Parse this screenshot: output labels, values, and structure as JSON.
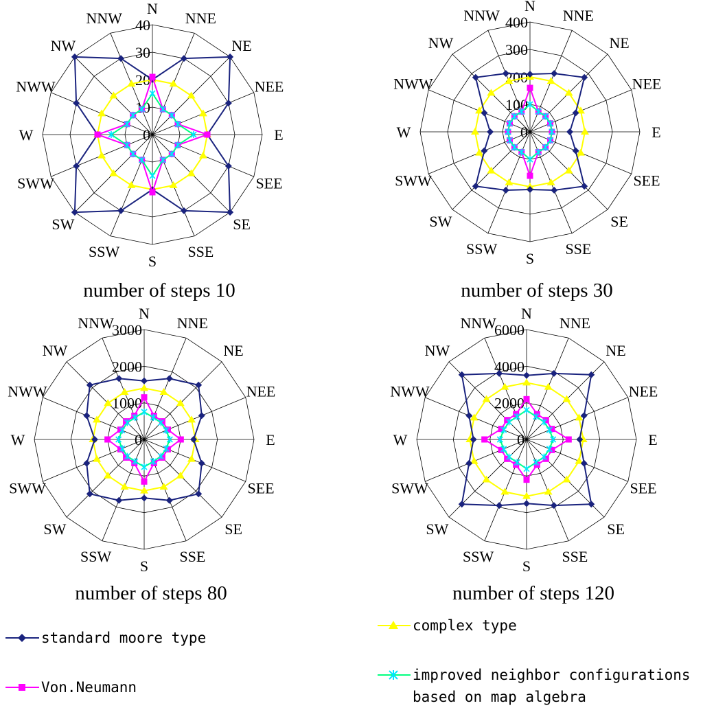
{
  "colors": {
    "standard_moore": "#1a237e",
    "complex": "#ffff00",
    "von_neumann": "#ff00ff",
    "improved": "#00ff7f",
    "improved_marker": "#00e5ff",
    "grid": "#000000"
  },
  "legend": {
    "standard_moore": "standard moore type",
    "complex": "complex type",
    "von_neumann": "Von.Neumann",
    "improved_line1": "improved neighbor configurations",
    "improved_line2": "based on map algebra"
  },
  "chart_data": [
    {
      "type": "radar",
      "title": "number of steps 10",
      "categories": [
        "N",
        "NNE",
        "NE",
        "NEE",
        "E",
        "SEE",
        "SE",
        "SSE",
        "S",
        "SSW",
        "SW",
        "SWW",
        "W",
        "NWW",
        "NW",
        "NNW"
      ],
      "rings": [
        0,
        10,
        20,
        30,
        40
      ],
      "ring_labels": [
        "0",
        "10",
        "20",
        "30",
        "40"
      ],
      "rmax": 40,
      "series": [
        {
          "name": "standard moore type",
          "key": "standard_moore",
          "values": [
            20,
            30,
            40,
            30,
            20,
            30,
            40,
            30,
            20,
            30,
            40,
            30,
            20,
            30,
            40,
            30
          ]
        },
        {
          "name": "complex type",
          "key": "complex",
          "values": [
            20,
            20,
            20,
            20,
            20,
            20,
            20,
            20,
            20,
            20,
            20,
            20,
            20,
            20,
            20,
            20
          ]
        },
        {
          "name": "Von.Neumann",
          "key": "von_neumann",
          "values": [
            21,
            10,
            10,
            10,
            20,
            10,
            10,
            10,
            21,
            10,
            10,
            10,
            20,
            10,
            10,
            10
          ]
        },
        {
          "name": "improved neighbor configurations based on map algebra",
          "key": "improved",
          "values": [
            15,
            10,
            10,
            10,
            15,
            10,
            10,
            10,
            15,
            10,
            10,
            10,
            15,
            10,
            10,
            10
          ]
        }
      ]
    },
    {
      "type": "radar",
      "title": "number of steps 30",
      "categories": [
        "N",
        "NNE",
        "NE",
        "NEE",
        "E",
        "SEE",
        "SE",
        "SSE",
        "S",
        "SSW",
        "SW",
        "SWW",
        "W",
        "NWW",
        "NW",
        "NNW"
      ],
      "rings": [
        0,
        100,
        200,
        300,
        400
      ],
      "ring_labels": [
        "0",
        "100",
        "200",
        "300",
        "400"
      ],
      "rmax": 400,
      "series": [
        {
          "name": "standard moore type",
          "key": "standard_moore",
          "values": [
            210,
            230,
            280,
            180,
            145,
            180,
            280,
            230,
            210,
            230,
            280,
            180,
            145,
            180,
            280,
            230
          ]
        },
        {
          "name": "complex type",
          "key": "complex",
          "values": [
            200,
            200,
            200,
            200,
            200,
            200,
            200,
            200,
            200,
            200,
            200,
            200,
            200,
            200,
            200,
            200
          ]
        },
        {
          "name": "Von.Neumann",
          "key": "von_neumann",
          "values": [
            160,
            80,
            80,
            80,
            80,
            80,
            80,
            80,
            160,
            80,
            80,
            80,
            80,
            80,
            80,
            80
          ]
        },
        {
          "name": "improved neighbor configurations based on map algebra",
          "key": "improved",
          "values": [
            100,
            80,
            80,
            80,
            80,
            80,
            80,
            80,
            100,
            80,
            80,
            80,
            80,
            80,
            80,
            80
          ]
        }
      ]
    },
    {
      "type": "radar",
      "title": "number of steps 80",
      "categories": [
        "N",
        "NNE",
        "NE",
        "NEE",
        "E",
        "SEE",
        "SE",
        "SSE",
        "S",
        "SSW",
        "SW",
        "SWW",
        "W",
        "NWW",
        "NW",
        "NNW"
      ],
      "rings": [
        0,
        1000,
        2000,
        3000
      ],
      "ring_labels": [
        "0",
        "1000",
        "2000",
        "3000"
      ],
      "rmax": 3000,
      "series": [
        {
          "name": "standard moore type",
          "key": "standard_moore",
          "values": [
            1600,
            1800,
            2100,
            1700,
            1350,
            1700,
            2100,
            1800,
            1600,
            1800,
            2100,
            1700,
            1350,
            1700,
            2100,
            1800
          ]
        },
        {
          "name": "complex type",
          "key": "complex",
          "values": [
            1400,
            1400,
            1400,
            1400,
            1400,
            1400,
            1400,
            1400,
            1400,
            1400,
            1400,
            1400,
            1400,
            1400,
            1400,
            1400
          ]
        },
        {
          "name": "Von.Neumann",
          "key": "von_neumann",
          "values": [
            1150,
            700,
            700,
            700,
            1000,
            700,
            700,
            700,
            1150,
            700,
            700,
            700,
            1000,
            700,
            700,
            700
          ]
        },
        {
          "name": "improved neighbor configurations based on map algebra",
          "key": "improved",
          "values": [
            750,
            650,
            650,
            650,
            700,
            650,
            650,
            650,
            750,
            650,
            650,
            650,
            700,
            650,
            650,
            650
          ]
        }
      ]
    },
    {
      "type": "radar",
      "title": "number of steps 120",
      "categories": [
        "N",
        "NNE",
        "NE",
        "NEE",
        "E",
        "SEE",
        "SE",
        "SSE",
        "S",
        "SSW",
        "SW",
        "SWW",
        "W",
        "NWW",
        "NW",
        "NNW"
      ],
      "rings": [
        0,
        2000,
        4000,
        6000
      ],
      "ring_labels": [
        "0",
        "2000",
        "4000",
        "6000"
      ],
      "rmax": 6000,
      "series": [
        {
          "name": "standard moore type",
          "key": "standard_moore",
          "values": [
            3500,
            3900,
            5000,
            3400,
            2900,
            3400,
            5000,
            3900,
            3500,
            3900,
            5000,
            3400,
            2900,
            3400,
            5000,
            3900
          ]
        },
        {
          "name": "complex type",
          "key": "complex",
          "values": [
            3100,
            3100,
            3100,
            3100,
            3100,
            3100,
            3100,
            3100,
            3100,
            3100,
            3100,
            3100,
            3100,
            3100,
            3100,
            3100
          ]
        },
        {
          "name": "Von.Neumann",
          "key": "von_neumann",
          "values": [
            2200,
            1500,
            1500,
            1500,
            2300,
            1500,
            1500,
            1500,
            2200,
            1500,
            1500,
            1500,
            2300,
            1500,
            1500,
            1500
          ]
        },
        {
          "name": "improved neighbor configurations based on map algebra",
          "key": "improved",
          "values": [
            1600,
            1350,
            1350,
            1350,
            1450,
            1350,
            1350,
            1350,
            1600,
            1350,
            1350,
            1350,
            1450,
            1350,
            1350,
            1350
          ]
        }
      ]
    }
  ]
}
